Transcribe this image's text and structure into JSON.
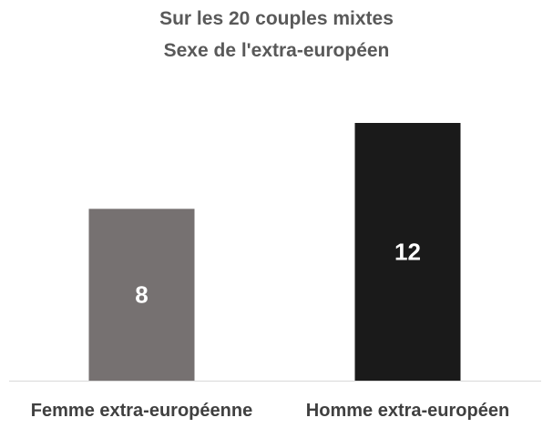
{
  "chart_data": {
    "type": "bar",
    "title_lines": [
      "Sur les 20 couples mixtes",
      "Sexe de l'extra-européen"
    ],
    "categories": [
      "Femme extra-européenne",
      "Homme extra-européen"
    ],
    "values": [
      8,
      12
    ],
    "data_labels": [
      "8",
      "12"
    ],
    "bar_colors": [
      "#767171",
      "#1a1a1a"
    ],
    "axis_line_color": "#d9d9d9",
    "ylim": [
      0,
      12
    ],
    "grid": false,
    "legend": "none",
    "xlabel": "",
    "ylabel": ""
  }
}
